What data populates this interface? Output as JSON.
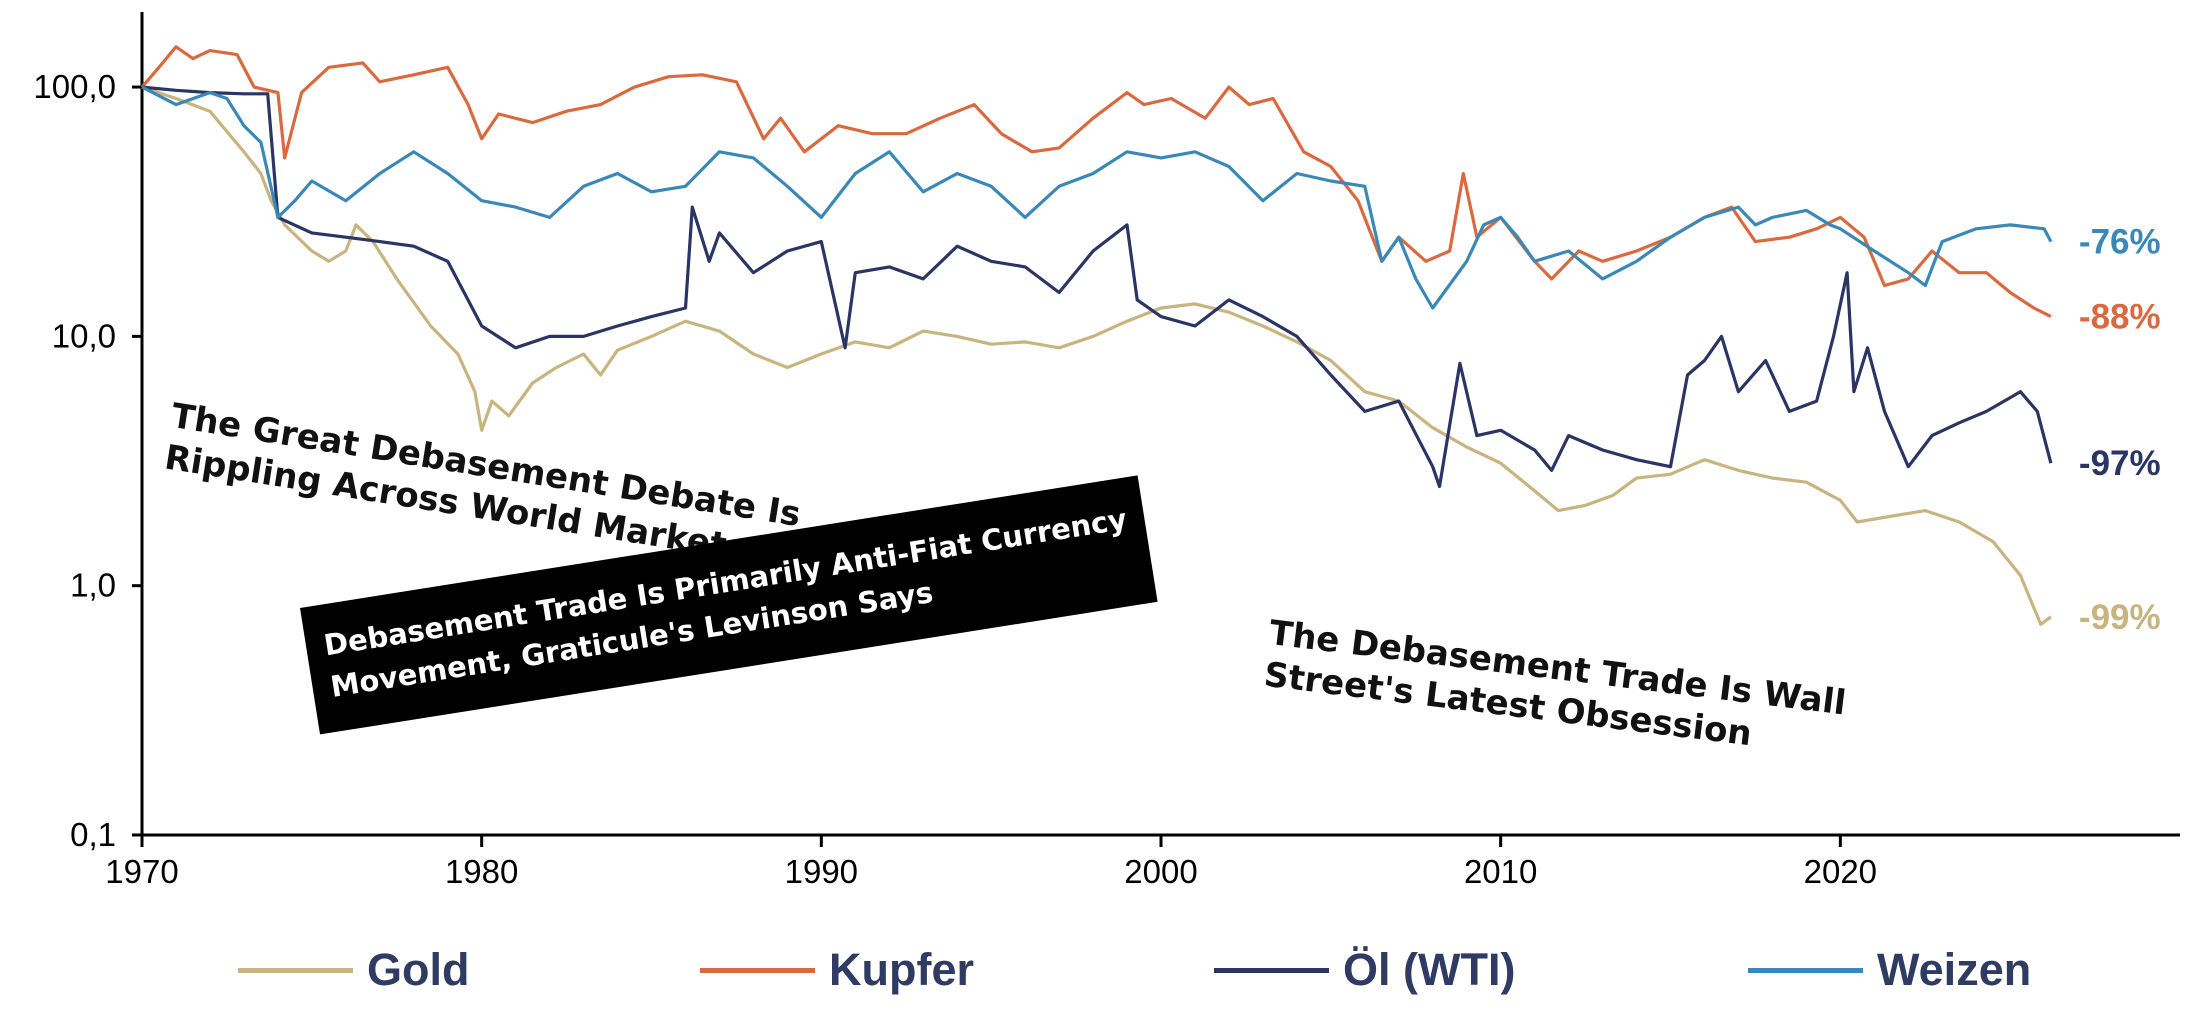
{
  "chart_data": {
    "type": "line",
    "title": "",
    "xlabel": "",
    "ylabel": "",
    "y_scale": "log",
    "ylim": [
      0.1,
      200
    ],
    "xlim": [
      1970,
      2030
    ],
    "y_ticks": [
      "100,0",
      "10,0",
      "1,0",
      "0,1"
    ],
    "y_tick_values": [
      100,
      10,
      1,
      0.1
    ],
    "x_ticks": [
      "1970",
      "1980",
      "1990",
      "2000",
      "2010",
      "2020"
    ],
    "x_tick_values": [
      1970,
      1980,
      1990,
      2000,
      2010,
      2020
    ],
    "grid": false,
    "legend_position": "bottom",
    "series": [
      {
        "name": "Gold",
        "color": "#c8b47f",
        "end_label": "-99%",
        "points": [
          [
            1970,
            100
          ],
          [
            1971,
            90
          ],
          [
            1972,
            80
          ],
          [
            1973,
            55
          ],
          [
            1973.5,
            45
          ],
          [
            1973.8,
            35
          ],
          [
            1974.2,
            28
          ],
          [
            1975,
            22
          ],
          [
            1975.5,
            20
          ],
          [
            1976,
            22
          ],
          [
            1976.3,
            28
          ],
          [
            1976.8,
            24
          ],
          [
            1977.5,
            17
          ],
          [
            1978.5,
            11
          ],
          [
            1979.3,
            8.5
          ],
          [
            1979.8,
            6
          ],
          [
            1980,
            4.2
          ],
          [
            1980.3,
            5.5
          ],
          [
            1980.8,
            4.8
          ],
          [
            1981.5,
            6.5
          ],
          [
            1982.2,
            7.5
          ],
          [
            1983,
            8.5
          ],
          [
            1983.5,
            7
          ],
          [
            1984,
            8.8
          ],
          [
            1985,
            10
          ],
          [
            1986,
            11.5
          ],
          [
            1987,
            10.5
          ],
          [
            1988,
            8.5
          ],
          [
            1989,
            7.5
          ],
          [
            1990,
            8.5
          ],
          [
            1991,
            9.5
          ],
          [
            1992,
            9
          ],
          [
            1993,
            10.5
          ],
          [
            1994,
            10
          ],
          [
            1995,
            9.3
          ],
          [
            1996,
            9.5
          ],
          [
            1997,
            9
          ],
          [
            1998,
            10
          ],
          [
            1999,
            11.5
          ],
          [
            2000,
            13
          ],
          [
            2001,
            13.5
          ],
          [
            2002,
            12.5
          ],
          [
            2003,
            11
          ],
          [
            2004,
            9.5
          ],
          [
            2005,
            8
          ],
          [
            2006,
            6
          ],
          [
            2007,
            5.5
          ],
          [
            2008,
            4.3
          ],
          [
            2009,
            3.6
          ],
          [
            2010,
            3.1
          ],
          [
            2011,
            2.4
          ],
          [
            2011.7,
            2
          ],
          [
            2012.5,
            2.1
          ],
          [
            2013.3,
            2.3
          ],
          [
            2014,
            2.7
          ],
          [
            2015,
            2.8
          ],
          [
            2016,
            3.2
          ],
          [
            2017,
            2.9
          ],
          [
            2018,
            2.7
          ],
          [
            2019,
            2.6
          ],
          [
            2020,
            2.2
          ],
          [
            2020.5,
            1.8
          ],
          [
            2021.5,
            1.9
          ],
          [
            2022.5,
            2
          ],
          [
            2023.5,
            1.8
          ],
          [
            2024.5,
            1.5
          ],
          [
            2025.3,
            1.1
          ],
          [
            2025.9,
            0.7
          ],
          [
            2026.2,
            0.75
          ]
        ]
      },
      {
        "name": "Kupfer",
        "color": "#d96a3f",
        "end_label": "-88%",
        "points": [
          [
            1970,
            100
          ],
          [
            1970.5,
            120
          ],
          [
            1971,
            145
          ],
          [
            1971.5,
            130
          ],
          [
            1972,
            140
          ],
          [
            1972.8,
            135
          ],
          [
            1973.3,
            100
          ],
          [
            1974,
            95
          ],
          [
            1974.2,
            52
          ],
          [
            1974.7,
            95
          ],
          [
            1975.5,
            120
          ],
          [
            1976.5,
            125
          ],
          [
            1977,
            105
          ],
          [
            1978,
            112
          ],
          [
            1979,
            120
          ],
          [
            1979.6,
            85
          ],
          [
            1980,
            62
          ],
          [
            1980.5,
            78
          ],
          [
            1981.5,
            72
          ],
          [
            1982.5,
            80
          ],
          [
            1983.5,
            85
          ],
          [
            1984.5,
            100
          ],
          [
            1985.5,
            110
          ],
          [
            1986.5,
            112
          ],
          [
            1987.5,
            105
          ],
          [
            1988.3,
            62
          ],
          [
            1988.8,
            75
          ],
          [
            1989.5,
            55
          ],
          [
            1990.5,
            70
          ],
          [
            1991.5,
            65
          ],
          [
            1992.5,
            65
          ],
          [
            1993.5,
            75
          ],
          [
            1994.5,
            85
          ],
          [
            1995.3,
            65
          ],
          [
            1996.2,
            55
          ],
          [
            1997,
            57
          ],
          [
            1998,
            75
          ],
          [
            1999,
            95
          ],
          [
            1999.5,
            85
          ],
          [
            2000.3,
            90
          ],
          [
            2001.3,
            75
          ],
          [
            2002,
            100
          ],
          [
            2002.6,
            85
          ],
          [
            2003.3,
            90
          ],
          [
            2004.2,
            55
          ],
          [
            2005,
            48
          ],
          [
            2005.8,
            35
          ],
          [
            2006.5,
            20
          ],
          [
            2007,
            25
          ],
          [
            2007.8,
            20
          ],
          [
            2008.5,
            22
          ],
          [
            2008.9,
            45
          ],
          [
            2009.3,
            25
          ],
          [
            2010,
            30
          ],
          [
            2011,
            20
          ],
          [
            2011.5,
            17
          ],
          [
            2012.3,
            22
          ],
          [
            2013,
            20
          ],
          [
            2014,
            22
          ],
          [
            2015,
            25
          ],
          [
            2016,
            30
          ],
          [
            2016.8,
            33
          ],
          [
            2017.5,
            24
          ],
          [
            2018.5,
            25
          ],
          [
            2019.3,
            27
          ],
          [
            2020,
            30
          ],
          [
            2020.7,
            25
          ],
          [
            2021.3,
            16
          ],
          [
            2022,
            17
          ],
          [
            2022.7,
            22
          ],
          [
            2023.5,
            18
          ],
          [
            2024.3,
            18
          ],
          [
            2025,
            15
          ],
          [
            2025.7,
            13
          ],
          [
            2026.2,
            12
          ]
        ]
      },
      {
        "name": "Öl (WTI)",
        "color": "#2a3565",
        "end_label": "-97%",
        "points": [
          [
            1970,
            100
          ],
          [
            1971,
            97
          ],
          [
            1972,
            95
          ],
          [
            1973,
            94
          ],
          [
            1973.7,
            94
          ],
          [
            1974,
            30
          ],
          [
            1975,
            26
          ],
          [
            1976,
            25
          ],
          [
            1977,
            24
          ],
          [
            1978,
            23
          ],
          [
            1979,
            20
          ],
          [
            1980,
            11
          ],
          [
            1981,
            9
          ],
          [
            1982,
            10
          ],
          [
            1983,
            10
          ],
          [
            1984,
            11
          ],
          [
            1985,
            12
          ],
          [
            1986,
            13
          ],
          [
            1986.2,
            33
          ],
          [
            1986.7,
            20
          ],
          [
            1987,
            26
          ],
          [
            1988,
            18
          ],
          [
            1989,
            22
          ],
          [
            1990,
            24
          ],
          [
            1990.7,
            9
          ],
          [
            1991,
            18
          ],
          [
            1992,
            19
          ],
          [
            1993,
            17
          ],
          [
            1994,
            23
          ],
          [
            1995,
            20
          ],
          [
            1996,
            19
          ],
          [
            1997,
            15
          ],
          [
            1998,
            22
          ],
          [
            1999,
            28
          ],
          [
            1999.3,
            14
          ],
          [
            2000,
            12
          ],
          [
            2001,
            11
          ],
          [
            2002,
            14
          ],
          [
            2003,
            12
          ],
          [
            2004,
            10
          ],
          [
            2005,
            7
          ],
          [
            2006,
            5
          ],
          [
            2007,
            5.5
          ],
          [
            2008,
            3
          ],
          [
            2008.2,
            2.5
          ],
          [
            2008.8,
            7.8
          ],
          [
            2009.3,
            4
          ],
          [
            2010,
            4.2
          ],
          [
            2011,
            3.5
          ],
          [
            2011.5,
            2.9
          ],
          [
            2012,
            4
          ],
          [
            2013,
            3.5
          ],
          [
            2014,
            3.2
          ],
          [
            2015,
            3
          ],
          [
            2015.5,
            7
          ],
          [
            2016,
            8
          ],
          [
            2016.5,
            10
          ],
          [
            2017,
            6
          ],
          [
            2017.8,
            8
          ],
          [
            2018.5,
            5
          ],
          [
            2019.3,
            5.5
          ],
          [
            2019.8,
            10
          ],
          [
            2020.2,
            18
          ],
          [
            2020.4,
            6
          ],
          [
            2020.8,
            9
          ],
          [
            2021.3,
            5
          ],
          [
            2022,
            3
          ],
          [
            2022.7,
            4
          ],
          [
            2023.5,
            4.5
          ],
          [
            2024.3,
            5
          ],
          [
            2025.3,
            6
          ],
          [
            2025.8,
            5
          ],
          [
            2026.2,
            3.1
          ]
        ]
      },
      {
        "name": "Weizen",
        "color": "#3a88b8",
        "end_label": "-76%",
        "points": [
          [
            1970,
            100
          ],
          [
            1971,
            85
          ],
          [
            1972,
            95
          ],
          [
            1972.5,
            90
          ],
          [
            1973,
            70
          ],
          [
            1973.5,
            60
          ],
          [
            1974,
            30
          ],
          [
            1974.5,
            35
          ],
          [
            1975,
            42
          ],
          [
            1976,
            35
          ],
          [
            1977,
            45
          ],
          [
            1978,
            55
          ],
          [
            1979,
            45
          ],
          [
            1980,
            35
          ],
          [
            1981,
            33
          ],
          [
            1982,
            30
          ],
          [
            1983,
            40
          ],
          [
            1984,
            45
          ],
          [
            1985,
            38
          ],
          [
            1986,
            40
          ],
          [
            1987,
            55
          ],
          [
            1988,
            52
          ],
          [
            1989,
            40
          ],
          [
            1990,
            30
          ],
          [
            1991,
            45
          ],
          [
            1992,
            55
          ],
          [
            1993,
            38
          ],
          [
            1994,
            45
          ],
          [
            1995,
            40
          ],
          [
            1996,
            30
          ],
          [
            1997,
            40
          ],
          [
            1998,
            45
          ],
          [
            1999,
            55
          ],
          [
            2000,
            52
          ],
          [
            2001,
            55
          ],
          [
            2002,
            48
          ],
          [
            2003,
            35
          ],
          [
            2004,
            45
          ],
          [
            2005,
            42
          ],
          [
            2006,
            40
          ],
          [
            2006.5,
            20
          ],
          [
            2007,
            25
          ],
          [
            2007.5,
            17
          ],
          [
            2008,
            13
          ],
          [
            2009,
            20
          ],
          [
            2009.5,
            28
          ],
          [
            2010,
            30
          ],
          [
            2010.5,
            25
          ],
          [
            2011,
            20
          ],
          [
            2012,
            22
          ],
          [
            2013,
            17
          ],
          [
            2014,
            20
          ],
          [
            2015,
            25
          ],
          [
            2016,
            30
          ],
          [
            2017,
            33
          ],
          [
            2017.5,
            28
          ],
          [
            2018,
            30
          ],
          [
            2019,
            32
          ],
          [
            2019.7,
            28
          ],
          [
            2020,
            27
          ],
          [
            2021,
            22
          ],
          [
            2022,
            18
          ],
          [
            2022.5,
            16
          ],
          [
            2023,
            24
          ],
          [
            2024,
            27
          ],
          [
            2025,
            28
          ],
          [
            2026,
            27
          ],
          [
            2026.2,
            24
          ]
        ]
      }
    ],
    "end_labels": [
      "-76%",
      "-88%",
      "-97%",
      "-99%"
    ]
  },
  "headlines": {
    "h1": [
      "The Great Debasement Debate Is",
      "Rippling Across World Markets"
    ],
    "h2": [
      "Debasement Trade Is Primarily Anti-Fiat Currency",
      "Movement, Graticule's Levinson Says"
    ],
    "h3": [
      "The Debasement Trade Is Wall",
      "Street's Latest Obsession"
    ]
  },
  "legend": {
    "items": [
      {
        "label": "Gold",
        "color": "#c8b47f"
      },
      {
        "label": "Kupfer",
        "color": "#d96a3f"
      },
      {
        "label": "Öl (WTI)",
        "color": "#2a3565"
      },
      {
        "label": "Weizen",
        "color": "#3a88b8"
      }
    ]
  }
}
